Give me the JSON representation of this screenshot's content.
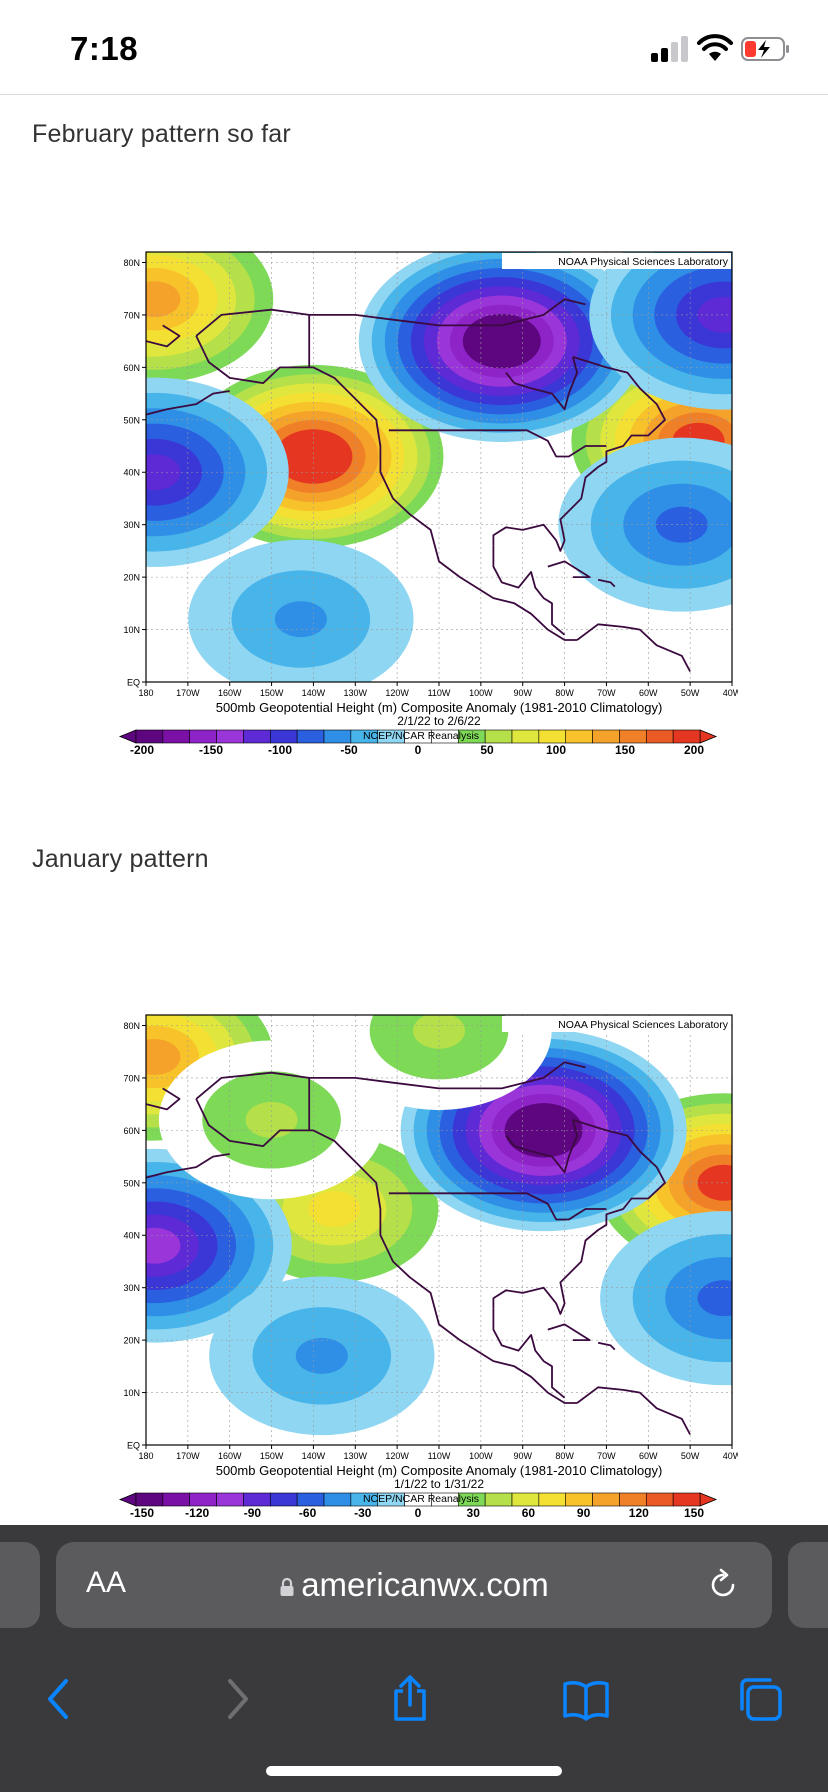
{
  "status_bar": {
    "time": "7:18",
    "icons": [
      "cellular-signal-icon",
      "wifi-icon",
      "battery-charging-icon"
    ],
    "battery_color": "#ff3b30"
  },
  "post": {
    "february_caption": "February pattern so far",
    "january_caption": "January  pattern"
  },
  "chart_data": [
    {
      "type": "heatmap",
      "title": "500mb Geopotential Height (m) Composite Anomaly (1981-2010 Climatology)",
      "subtitle": "2/1/22 to 2/6/22",
      "source": "NCEP/NCAR Reanalysis",
      "credit": "NOAA Physical Sciences Laboratory",
      "x_ticks": [
        "180",
        "170W",
        "160W",
        "150W",
        "140W",
        "130W",
        "120W",
        "110W",
        "100W",
        "90W",
        "80W",
        "70W",
        "60W",
        "50W",
        "40W"
      ],
      "y_ticks": [
        "EQ",
        "10N",
        "20N",
        "30N",
        "40N",
        "50N",
        "60N",
        "70N",
        "80N"
      ],
      "colorbar_ticks": [
        "-200",
        "-150",
        "-100",
        "-50",
        "0",
        "50",
        "100",
        "150",
        "200"
      ],
      "colorbar_colors": [
        "#5e0680",
        "#7a10a6",
        "#8e24c8",
        "#9a35d9",
        "#5d2ad6",
        "#3b36d6",
        "#2a5fe0",
        "#2f8fe6",
        "#47b4ea",
        "#8fd6f2",
        "#ffffff",
        "#ffffff",
        "#7ed957",
        "#b6e04a",
        "#dfe63e",
        "#f4e032",
        "#f7c22a",
        "#f5a22a",
        "#f08028",
        "#ea5a25",
        "#e53622"
      ],
      "anomalies": [
        {
          "lon": -140,
          "lat": 43,
          "value": 200
        },
        {
          "lon": -48,
          "lat": 46,
          "value": 170
        },
        {
          "lon": -178,
          "lat": 73,
          "value": 130
        },
        {
          "lon": -95,
          "lat": 65,
          "value": -200
        },
        {
          "lon": -178,
          "lat": 40,
          "value": -110
        },
        {
          "lon": -52,
          "lat": 30,
          "value": -80
        },
        {
          "lon": -143,
          "lat": 12,
          "value": -50
        },
        {
          "lon": -42,
          "lat": 70,
          "value": -120
        }
      ]
    },
    {
      "type": "heatmap",
      "title": "500mb Geopotential Height (m) Composite Anomaly (1981-2010 Climatology)",
      "subtitle": "1/1/22 to 1/31/22",
      "source": "NCEP/NCAR Reanalysis",
      "credit": "NOAA Physical Sciences Laboratory",
      "x_ticks": [
        "180",
        "170W",
        "160W",
        "150W",
        "140W",
        "130W",
        "120W",
        "110W",
        "100W",
        "90W",
        "80W",
        "70W",
        "60W",
        "50W",
        "40W"
      ],
      "y_ticks": [
        "EQ",
        "10N",
        "20N",
        "30N",
        "40N",
        "50N",
        "60N",
        "70N",
        "80N"
      ],
      "colorbar_ticks": [
        "-150",
        "-120",
        "-90",
        "-60",
        "-30",
        "0",
        "30",
        "60",
        "90",
        "120",
        "150"
      ],
      "colorbar_colors": [
        "#5e0680",
        "#7a10a6",
        "#8e24c8",
        "#9a35d9",
        "#5d2ad6",
        "#3b36d6",
        "#2a5fe0",
        "#2f8fe6",
        "#47b4ea",
        "#8fd6f2",
        "#ffffff",
        "#ffffff",
        "#7ed957",
        "#b6e04a",
        "#dfe63e",
        "#f4e032",
        "#f7c22a",
        "#f5a22a",
        "#f08028",
        "#ea5a25",
        "#e53622"
      ],
      "anomalies": [
        {
          "lon": -178,
          "lat": 74,
          "value": 110
        },
        {
          "lon": -135,
          "lat": 45,
          "value": 80
        },
        {
          "lon": -42,
          "lat": 50,
          "value": 130
        },
        {
          "lon": -85,
          "lat": 60,
          "value": -150
        },
        {
          "lon": -178,
          "lat": 38,
          "value": -100
        },
        {
          "lon": -138,
          "lat": 17,
          "value": -40
        },
        {
          "lon": -42,
          "lat": 28,
          "value": -60
        },
        {
          "lon": -150,
          "lat": 62,
          "value": 40
        },
        {
          "lon": -110,
          "lat": 79,
          "value": 40
        }
      ]
    }
  ],
  "safari": {
    "aa_label": "AA",
    "url": "americanwx.com",
    "icons": [
      "lock-icon",
      "reload-icon",
      "back-icon",
      "forward-icon",
      "share-icon",
      "bookmarks-icon",
      "tabs-icon"
    ],
    "accent": "#0a84ff"
  }
}
